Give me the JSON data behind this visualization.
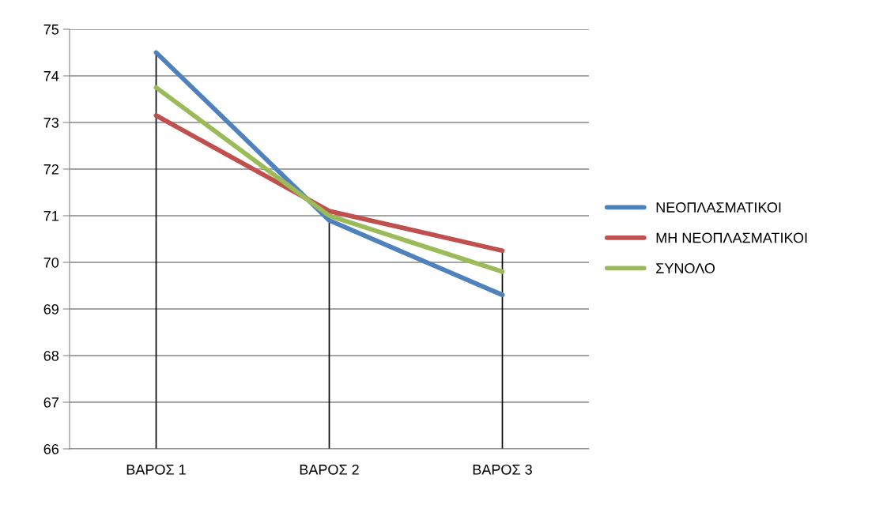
{
  "chart_data": {
    "type": "line",
    "categories": [
      "ΒΑΡΟΣ 1",
      "ΒΑΡΟΣ 2",
      "ΒΑΡΟΣ 3"
    ],
    "series": [
      {
        "name": "ΝΕΟΠΛΑΣΜΑΤΙΚΟΙ",
        "color": "#4f81bd",
        "values": [
          74.5,
          70.9,
          69.3
        ]
      },
      {
        "name": "ΜΗ ΝΕΟΠΛΑΣΜΑΤΙΚΟΙ",
        "color": "#c0504d",
        "values": [
          73.15,
          71.1,
          70.25
        ]
      },
      {
        "name": "ΣΥΝΟΛΟ",
        "color": "#9bbb59",
        "values": [
          73.75,
          71.0,
          69.8
        ]
      }
    ],
    "ylim": [
      66,
      75
    ],
    "yticks": [
      66,
      67,
      68,
      69,
      70,
      71,
      72,
      73,
      74,
      75
    ],
    "grid": "y",
    "legend": "right",
    "marker": "none",
    "line_style": "solid",
    "ref_lines": [
      {
        "axis": "x",
        "value": "ΒΑΡΟΣ 1",
        "color": "#000000"
      },
      {
        "axis": "x",
        "value": "ΒΑΡΟΣ 2",
        "color": "#000000"
      },
      {
        "axis": "x",
        "value": "ΒΑΡΟΣ 3",
        "color": "#000000"
      }
    ]
  }
}
